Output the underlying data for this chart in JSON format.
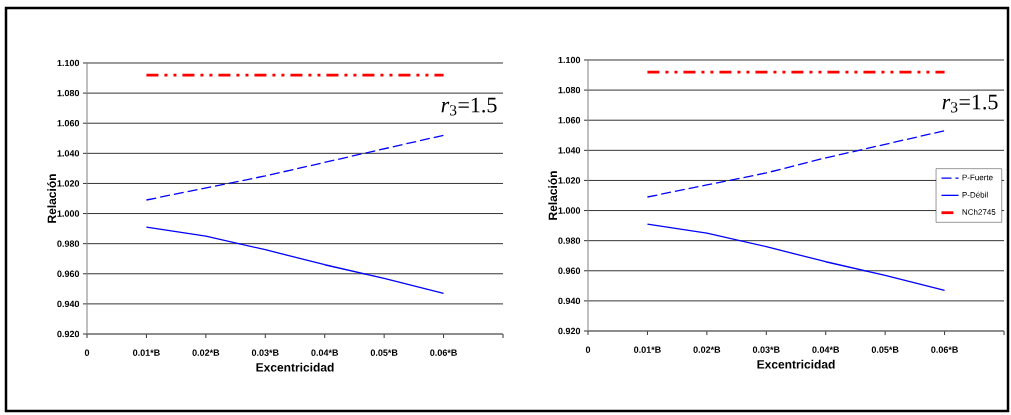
{
  "chart_data": [
    {
      "type": "line",
      "xlabel": "Excentricidad",
      "ylabel": "Relación",
      "categories": [
        "0",
        "0.01*B",
        "0.02*B",
        "0.03*B",
        "0.04*B",
        "0.05*B",
        "0.06*B",
        null
      ],
      "series": [
        {
          "color": "#0000ff",
          "line_style": "dashed",
          "values": [
            null,
            1.009,
            1.017,
            1.025,
            1.034,
            1.043,
            1.052,
            null
          ]
        },
        {
          "color": "#0000ff",
          "line_style": "solid",
          "values": [
            null,
            0.991,
            0.985,
            0.976,
            0.966,
            0.957,
            0.947,
            null
          ]
        },
        {
          "color": "#ff0000",
          "line_style": "dashed",
          "values": [
            null,
            1.092,
            1.092,
            1.092,
            1.092,
            1.092,
            1.092,
            null
          ]
        }
      ],
      "ylim": [
        0.92,
        1.1
      ],
      "yticks": [
        {
          "value": 0.92,
          "label": "0.920"
        },
        {
          "value": 0.94,
          "label": "0.940"
        },
        {
          "value": 0.96,
          "label": "0.960"
        },
        {
          "value": 0.98,
          "label": "0.980"
        },
        {
          "value": 1.0,
          "label": "1.000"
        },
        {
          "value": 1.02,
          "label": "1.020"
        },
        {
          "value": 1.04,
          "label": "1.040"
        },
        {
          "value": 1.06,
          "label": "1.060"
        },
        {
          "value": 1.08,
          "label": "1.080"
        },
        {
          "value": 1.1,
          "label": "1.100"
        }
      ],
      "grid": "y",
      "annotations": [
        "*r*$_{3}$=1.5"
      ]
    },
    {
      "type": "line",
      "xlabel": "Excentricidad",
      "ylabel": "Relación",
      "categories": [
        "0",
        "0.01*B",
        "0.02*B",
        "0.03*B",
        "0.04*B",
        "0.05*B",
        "0.06*B",
        null
      ],
      "series": [
        {
          "name": "P-Fuerte",
          "color": "#0000ff",
          "line_style": "dashed",
          "values": [
            null,
            1.009,
            1.017,
            1.025,
            1.035,
            1.044,
            1.053,
            null
          ]
        },
        {
          "name": "P-Débil",
          "color": "#0000ff",
          "line_style": "solid",
          "values": [
            null,
            0.991,
            0.985,
            0.976,
            0.966,
            0.957,
            0.947,
            null
          ]
        },
        {
          "name": "NCh2745",
          "color": "#ff0000",
          "line_style": "dashed",
          "values": [
            null,
            1.092,
            1.092,
            1.092,
            1.092,
            1.092,
            1.092,
            null
          ]
        }
      ],
      "ylim": [
        0.92,
        1.1
      ],
      "yticks": [
        {
          "value": 0.92,
          "label": "0.920"
        },
        {
          "value": 0.94,
          "label": "0.940"
        },
        {
          "value": 0.96,
          "label": "0.960"
        },
        {
          "value": 0.98,
          "label": "0.980"
        },
        {
          "value": 1.0,
          "label": "1.000"
        },
        {
          "value": 1.02,
          "label": "1.020"
        },
        {
          "value": 1.04,
          "label": "1.040"
        },
        {
          "value": 1.06,
          "label": "1.060"
        },
        {
          "value": 1.08,
          "label": "1.080"
        },
        {
          "value": 1.1,
          "label": "1.100"
        }
      ],
      "grid": "y",
      "legend": "right",
      "annotations": [
        "*r*$_{3}$=1.5"
      ]
    }
  ]
}
